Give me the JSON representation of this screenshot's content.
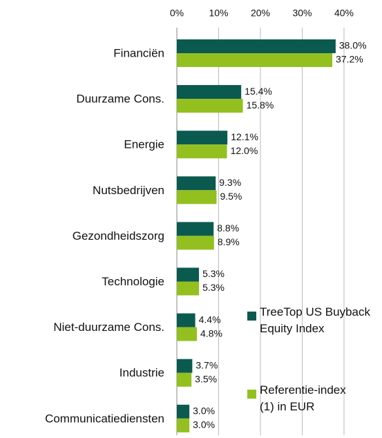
{
  "chart_data": {
    "type": "barh",
    "categories": [
      "Financiën",
      "Duurzame Cons.",
      "Energie",
      "Nutsbedrijven",
      "Gezondheidszorg",
      "Technologie",
      "Niet-duurzame Cons.",
      "Industrie",
      "Communicatiediensten"
    ],
    "series": [
      {
        "name": "TreeTop US Buyback Equity Index",
        "color": "#0b5a50",
        "values": [
          38.0,
          15.4,
          12.1,
          9.3,
          8.8,
          5.3,
          4.4,
          3.7,
          3.0
        ],
        "value_labels": [
          "38.0%",
          "15.4%",
          "12.1%",
          "9.3%",
          "8.8%",
          "5.3%",
          "4.4%",
          "3.7%",
          "3.0%"
        ]
      },
      {
        "name": "Referentie-index (1) in EUR",
        "color": "#93c01f",
        "values": [
          37.2,
          15.8,
          12.0,
          9.5,
          8.9,
          5.3,
          4.8,
          3.5,
          3.0
        ],
        "value_labels": [
          "37.2%",
          "15.8%",
          "12.0%",
          "9.5%",
          "8.9%",
          "5.3%",
          "4.8%",
          "3.5%",
          "3.0%"
        ]
      }
    ],
    "xlim": [
      0,
      40
    ],
    "xticks": [
      {
        "value": 0,
        "label": "0%"
      },
      {
        "value": 10,
        "label": "10%"
      },
      {
        "value": 20,
        "label": "20%"
      },
      {
        "value": 30,
        "label": "30%"
      },
      {
        "value": 40,
        "label": "40%"
      }
    ],
    "grid": true,
    "legend": "lower right"
  }
}
